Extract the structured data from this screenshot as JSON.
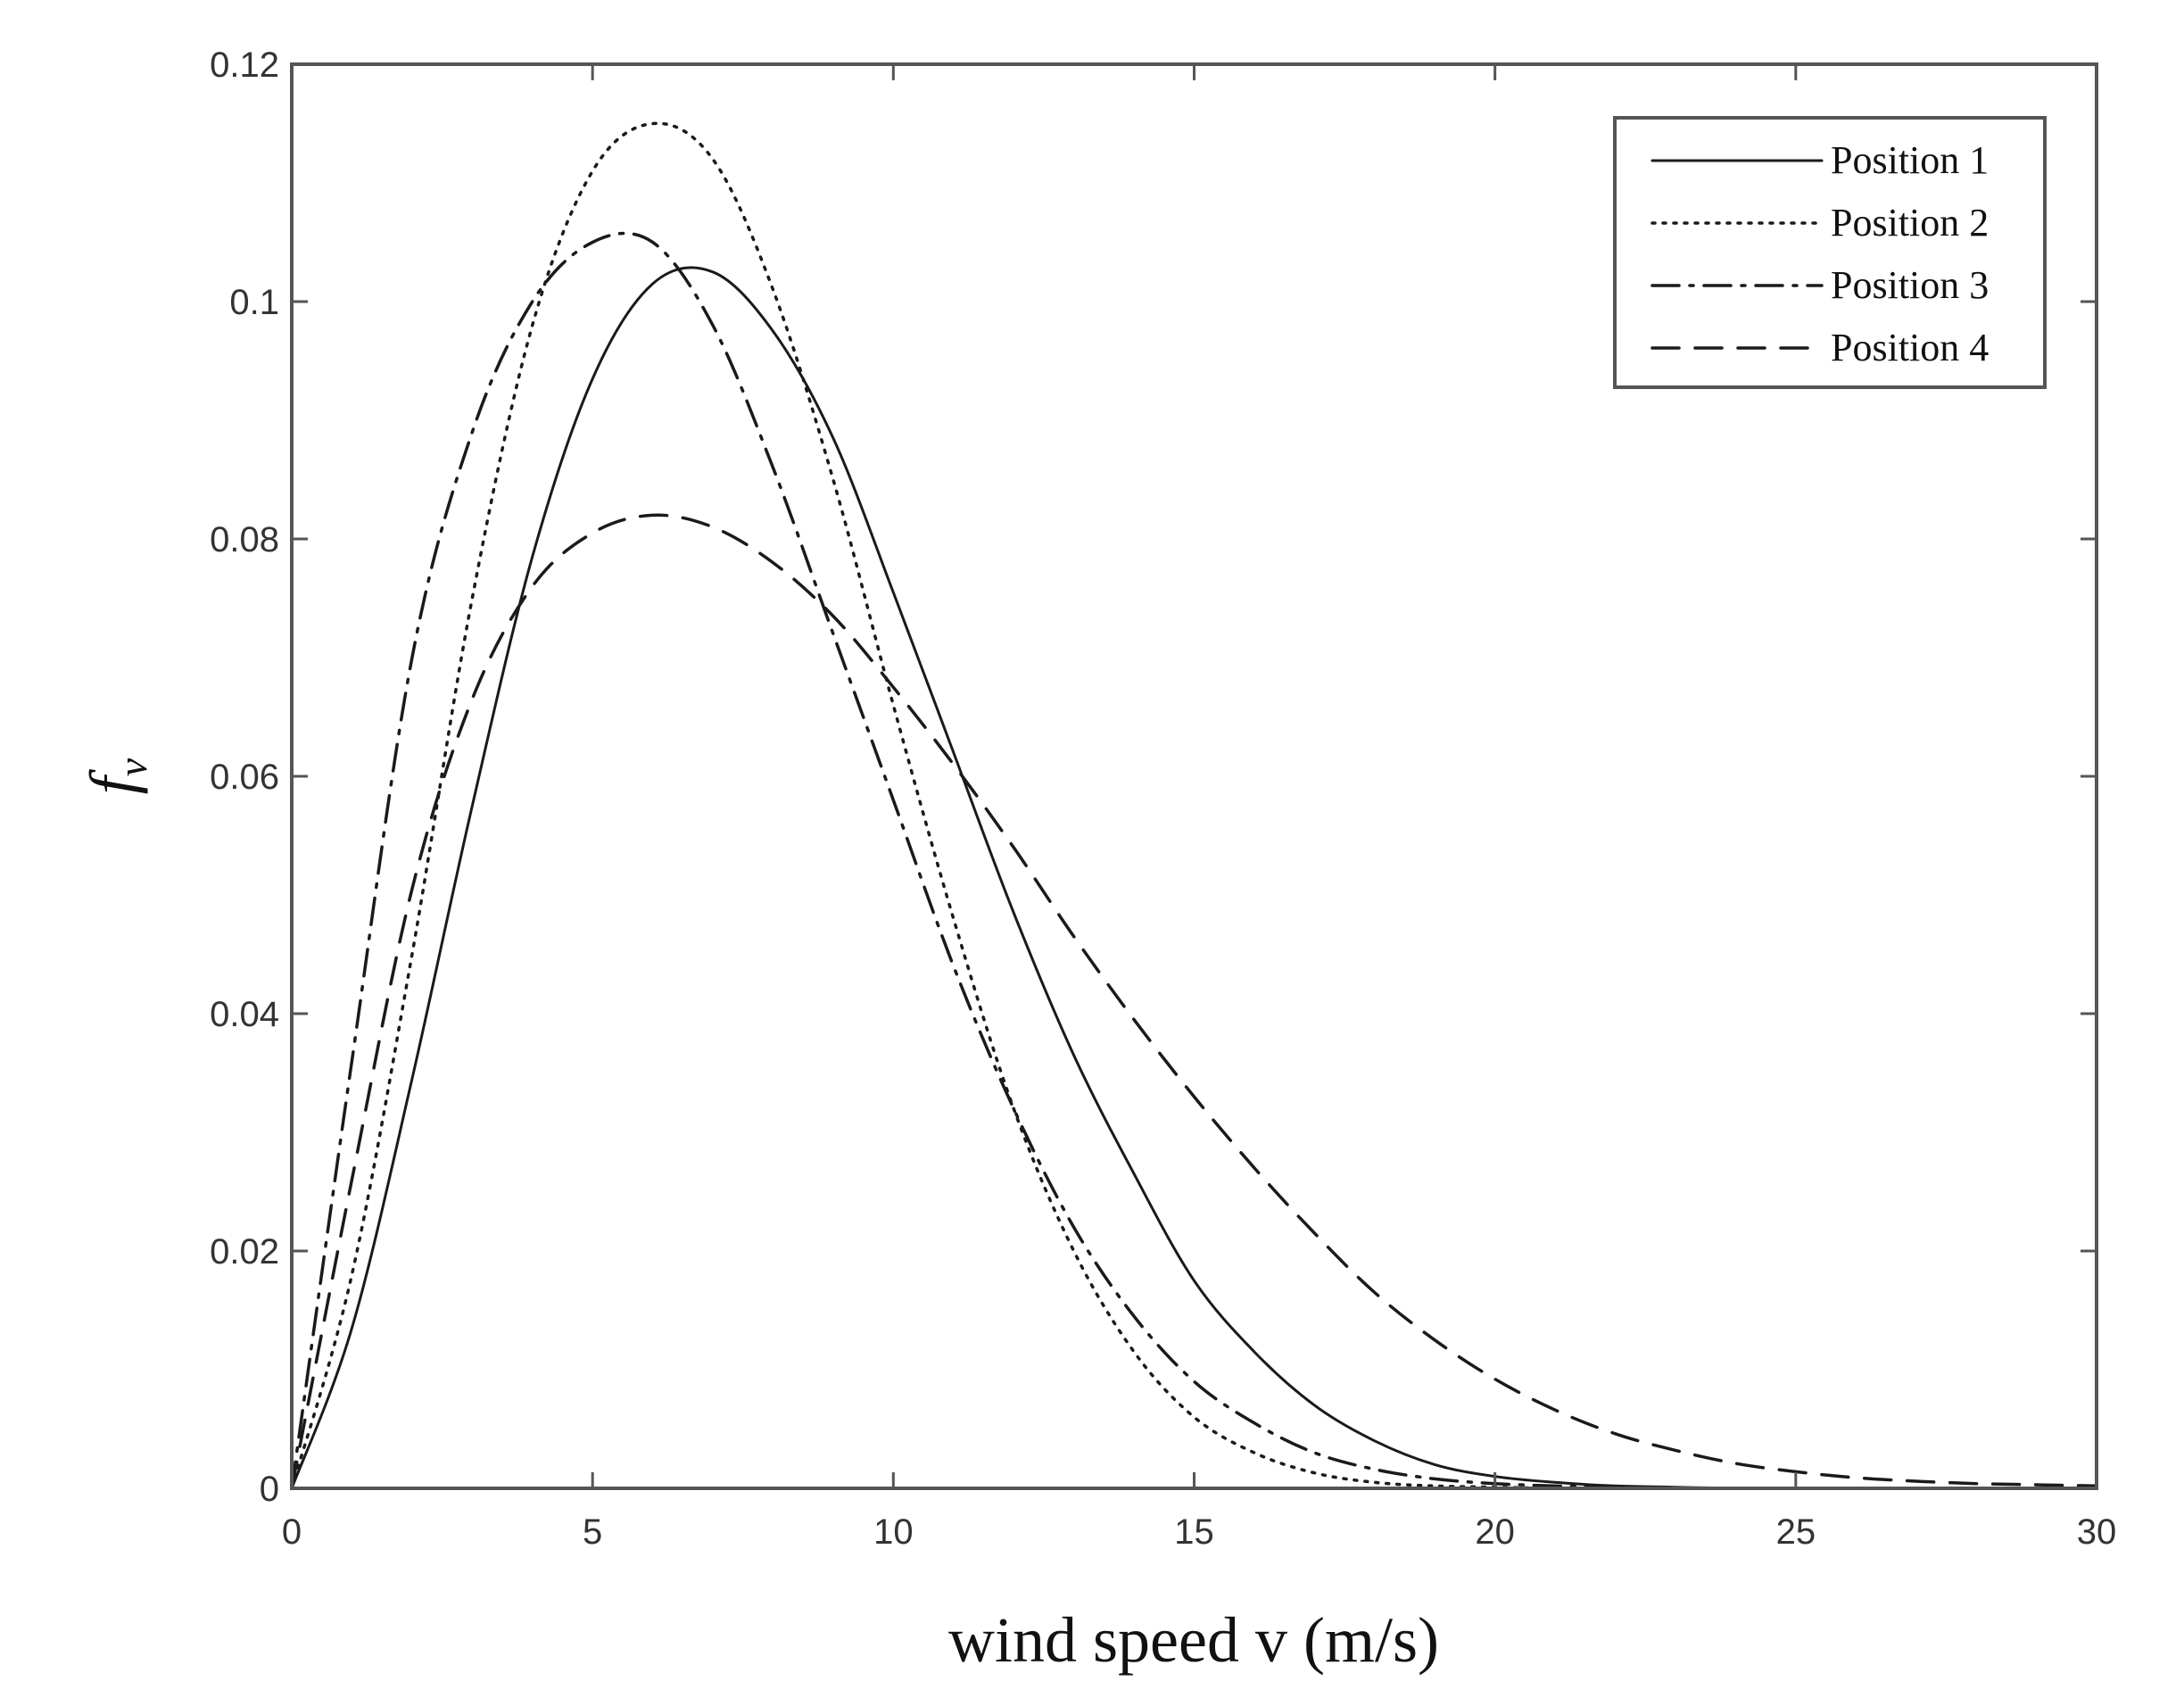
{
  "chart_data": {
    "type": "line",
    "title": "",
    "xlabel": "wind speed v (m/s)",
    "ylabel": "f_v",
    "ylabel_main": "f",
    "ylabel_sub": "v",
    "xlim": [
      0,
      30
    ],
    "ylim": [
      0,
      0.12
    ],
    "x_ticks": [
      "0",
      "5",
      "10",
      "15",
      "20",
      "25",
      "30"
    ],
    "y_ticks": [
      "0",
      "0.02",
      "0.04",
      "0.06",
      "0.08",
      "0.1",
      "0.12"
    ],
    "grid": false,
    "legend_position": "top-right",
    "x": [
      0,
      1,
      2,
      3,
      4,
      5,
      6,
      7,
      8,
      9,
      10,
      11,
      12,
      13,
      14,
      15,
      16,
      17,
      18,
      19,
      20,
      21,
      22,
      23,
      24,
      25,
      26,
      27,
      28,
      29,
      30
    ],
    "series": [
      {
        "name": "Position 1",
        "style": "solid",
        "color": "#1a1a1a",
        "values": [
          0,
          0.0135,
          0.0345,
          0.0575,
          0.0785,
          0.0935,
          0.1015,
          0.1025,
          0.0975,
          0.0885,
          0.0755,
          0.062,
          0.0485,
          0.0365,
          0.0265,
          0.0175,
          0.0115,
          0.007,
          0.004,
          0.002,
          0.001,
          0.0005,
          0.0002,
          0.0001,
          0,
          0,
          0,
          0,
          0,
          0,
          0
        ]
      },
      {
        "name": "Position 2",
        "style": "dotted",
        "color": "#1a1a1a",
        "values": [
          0,
          0.018,
          0.045,
          0.075,
          0.098,
          0.111,
          0.115,
          0.112,
          0.101,
          0.085,
          0.066,
          0.048,
          0.032,
          0.02,
          0.0115,
          0.006,
          0.003,
          0.0013,
          0.0005,
          0.0002,
          0.0001,
          0,
          0,
          0,
          0,
          0,
          0,
          0,
          0,
          0,
          0
        ]
      },
      {
        "name": "Position 3",
        "style": "dashdot",
        "color": "#1a1a1a",
        "values": [
          0,
          0.036,
          0.07,
          0.089,
          0.1,
          0.105,
          0.105,
          0.098,
          0.086,
          0.072,
          0.058,
          0.044,
          0.032,
          0.022,
          0.0145,
          0.009,
          0.0055,
          0.003,
          0.0016,
          0.0008,
          0.0004,
          0.0002,
          0.0001,
          0,
          0,
          0,
          0,
          0,
          0,
          0,
          0
        ]
      },
      {
        "name": "Position 4",
        "style": "dashed",
        "color": "#1a1a1a",
        "values": [
          0,
          0.026,
          0.0505,
          0.0665,
          0.076,
          0.0805,
          0.082,
          0.081,
          0.078,
          0.0735,
          0.0675,
          0.061,
          0.054,
          0.0465,
          0.0395,
          0.033,
          0.027,
          0.0215,
          0.0165,
          0.0125,
          0.0092,
          0.0066,
          0.0046,
          0.0032,
          0.0021,
          0.0014,
          0.0009,
          0.0006,
          0.0004,
          0.0003,
          0.0002
        ]
      }
    ]
  }
}
